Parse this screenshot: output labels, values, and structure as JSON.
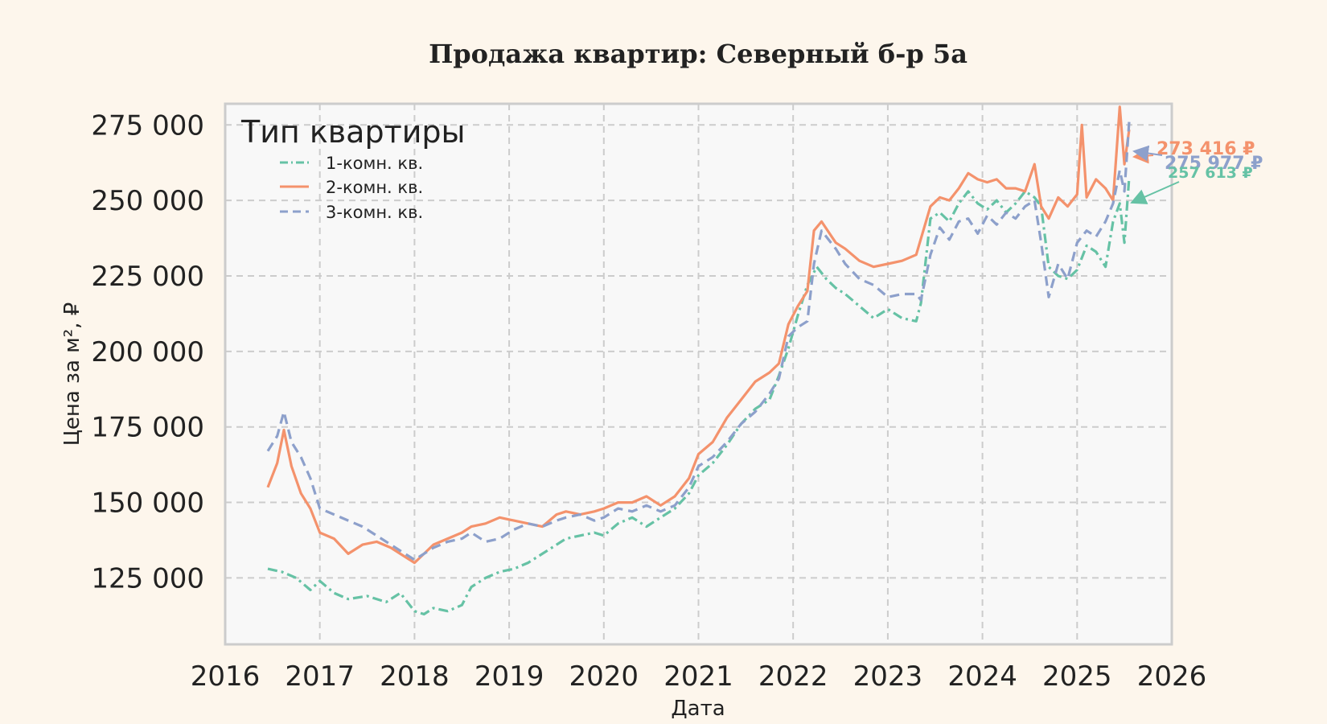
{
  "chart_data": {
    "type": "line",
    "title": "Продажа квартир: Северный б-р 5а",
    "xlabel": "Дата",
    "ylabel": "Цена за м², ₽",
    "xlim": [
      2016,
      2026
    ],
    "ylim": [
      103000,
      282000
    ],
    "x_ticks": [
      "2016",
      "2017",
      "2018",
      "2019",
      "2020",
      "2021",
      "2022",
      "2023",
      "2024",
      "2025",
      "2026"
    ],
    "y_ticks": [
      "125 000",
      "150 000",
      "175 000",
      "200 000",
      "225 000",
      "250 000",
      "275 000"
    ],
    "y_tick_values": [
      125000,
      150000,
      175000,
      200000,
      225000,
      250000,
      275000
    ],
    "grid": true,
    "legend": {
      "title": "Тип квартиры",
      "position": "top-left"
    },
    "series": [
      {
        "name": "1-комн. кв.",
        "color": "#66c2a5",
        "dash": "dashdot",
        "x": [
          2016.45,
          2016.6,
          2016.75,
          2016.9,
          2017.0,
          2017.15,
          2017.3,
          2017.5,
          2017.7,
          2017.85,
          2018.0,
          2018.1,
          2018.2,
          2018.35,
          2018.5,
          2018.6,
          2018.75,
          2018.9,
          2019.05,
          2019.2,
          2019.35,
          2019.5,
          2019.6,
          2019.75,
          2019.9,
          2020.0,
          2020.15,
          2020.3,
          2020.45,
          2020.6,
          2020.75,
          2020.9,
          2021.0,
          2021.15,
          2021.3,
          2021.45,
          2021.6,
          2021.75,
          2021.85,
          2021.95,
          2022.05,
          2022.15,
          2022.25,
          2022.35,
          2022.45,
          2022.55,
          2022.7,
          2022.85,
          2023.0,
          2023.15,
          2023.3,
          2023.35,
          2023.45,
          2023.55,
          2023.65,
          2023.75,
          2023.85,
          2023.95,
          2024.05,
          2024.15,
          2024.25,
          2024.35,
          2024.45,
          2024.55,
          2024.62,
          2024.7,
          2024.8,
          2024.9,
          2025.0,
          2025.1,
          2025.2,
          2025.3,
          2025.38,
          2025.45,
          2025.5,
          2025.55
        ],
        "y": [
          128000,
          127000,
          125000,
          121000,
          124000,
          120000,
          118000,
          119000,
          117000,
          120000,
          114000,
          113000,
          115000,
          114000,
          116000,
          122000,
          125000,
          127000,
          128000,
          130000,
          133000,
          136000,
          138000,
          139000,
          140000,
          139000,
          143000,
          145000,
          142000,
          145000,
          148000,
          153000,
          159000,
          163000,
          169000,
          176000,
          181000,
          184000,
          192000,
          201000,
          212000,
          222000,
          228000,
          224000,
          221000,
          219000,
          215000,
          211000,
          214000,
          211000,
          210000,
          216000,
          244000,
          246000,
          243000,
          249000,
          253000,
          249000,
          247000,
          250000,
          246000,
          249000,
          253000,
          251000,
          248000,
          228000,
          225000,
          224000,
          227000,
          235000,
          233000,
          228000,
          243000,
          249000,
          236000,
          257613
        ]
      },
      {
        "name": "2-комн. кв.",
        "color": "#f4926c",
        "dash": "solid",
        "x": [
          2016.45,
          2016.55,
          2016.62,
          2016.7,
          2016.8,
          2016.9,
          2017.0,
          2017.15,
          2017.3,
          2017.45,
          2017.6,
          2017.75,
          2017.85,
          2018.0,
          2018.1,
          2018.2,
          2018.35,
          2018.5,
          2018.6,
          2018.75,
          2018.9,
          2019.05,
          2019.2,
          2019.35,
          2019.5,
          2019.6,
          2019.75,
          2019.9,
          2020.0,
          2020.15,
          2020.3,
          2020.45,
          2020.6,
          2020.75,
          2020.9,
          2021.0,
          2021.15,
          2021.3,
          2021.45,
          2021.6,
          2021.75,
          2021.85,
          2021.95,
          2022.05,
          2022.15,
          2022.22,
          2022.3,
          2022.45,
          2022.55,
          2022.7,
          2022.85,
          2023.0,
          2023.15,
          2023.3,
          2023.45,
          2023.55,
          2023.65,
          2023.75,
          2023.85,
          2023.95,
          2024.05,
          2024.15,
          2024.25,
          2024.35,
          2024.45,
          2024.55,
          2024.62,
          2024.7,
          2024.8,
          2024.9,
          2025.0,
          2025.05,
          2025.1,
          2025.2,
          2025.3,
          2025.38,
          2025.45,
          2025.5,
          2025.55
        ],
        "y": [
          155000,
          163000,
          174000,
          162000,
          153000,
          148000,
          140000,
          138000,
          133000,
          136000,
          137000,
          135000,
          133000,
          130000,
          133000,
          136000,
          138000,
          140000,
          142000,
          143000,
          145000,
          144000,
          143000,
          142000,
          146000,
          147000,
          146000,
          147000,
          148000,
          150000,
          150000,
          152000,
          149000,
          152000,
          158000,
          166000,
          170000,
          178000,
          184000,
          190000,
          193000,
          196000,
          209000,
          215000,
          220000,
          240000,
          243000,
          236000,
          234000,
          230000,
          228000,
          229000,
          230000,
          232000,
          248000,
          251000,
          250000,
          254000,
          259000,
          257000,
          256000,
          257000,
          254000,
          254000,
          253000,
          262000,
          248000,
          244000,
          251000,
          248000,
          252000,
          275000,
          251000,
          257000,
          254000,
          250000,
          281000,
          262000,
          273416
        ]
      },
      {
        "name": "3-комн. кв.",
        "color": "#8da0cb",
        "dash": "dashed",
        "x": [
          2016.45,
          2016.55,
          2016.62,
          2016.7,
          2016.8,
          2016.9,
          2017.0,
          2017.15,
          2017.3,
          2017.45,
          2017.6,
          2017.75,
          2017.85,
          2018.0,
          2018.1,
          2018.2,
          2018.35,
          2018.5,
          2018.6,
          2018.75,
          2018.9,
          2019.05,
          2019.2,
          2019.35,
          2019.5,
          2019.6,
          2019.75,
          2019.9,
          2020.0,
          2020.15,
          2020.3,
          2020.45,
          2020.6,
          2020.75,
          2020.9,
          2021.0,
          2021.15,
          2021.3,
          2021.45,
          2021.6,
          2021.75,
          2021.85,
          2021.95,
          2022.05,
          2022.15,
          2022.22,
          2022.3,
          2022.45,
          2022.55,
          2022.7,
          2022.85,
          2023.0,
          2023.15,
          2023.3,
          2023.35,
          2023.45,
          2023.55,
          2023.65,
          2023.75,
          2023.85,
          2023.95,
          2024.05,
          2024.15,
          2024.25,
          2024.35,
          2024.45,
          2024.55,
          2024.62,
          2024.7,
          2024.8,
          2024.9,
          2025.0,
          2025.1,
          2025.2,
          2025.3,
          2025.38,
          2025.45,
          2025.5,
          2025.55
        ],
        "y": [
          167000,
          172000,
          180000,
          170000,
          165000,
          158000,
          148000,
          146000,
          144000,
          142000,
          139000,
          136000,
          134000,
          131000,
          133000,
          135000,
          137000,
          138000,
          140000,
          137000,
          138000,
          141000,
          143000,
          142000,
          144000,
          145000,
          146000,
          144000,
          145000,
          148000,
          147000,
          149000,
          147000,
          149000,
          155000,
          162000,
          165000,
          170000,
          176000,
          180000,
          186000,
          191000,
          205000,
          208000,
          210000,
          229000,
          240000,
          234000,
          229000,
          224000,
          222000,
          218000,
          219000,
          219000,
          217000,
          232000,
          241000,
          237000,
          243000,
          244000,
          239000,
          245000,
          242000,
          246000,
          244000,
          248000,
          250000,
          236000,
          218000,
          229000,
          224000,
          236000,
          240000,
          238000,
          243000,
          249000,
          260000,
          253000,
          275977
        ]
      }
    ],
    "annotations": [
      {
        "text": "273 416 ₽",
        "color": "#f4926c",
        "x": 2025.55,
        "y": 273416
      },
      {
        "text": "275 977 ₽",
        "color": "#8da0cb",
        "x": 2025.55,
        "y": 275977
      },
      {
        "text": "257 613 ₽",
        "color": "#66c2a5",
        "x": 2025.55,
        "y": 257613
      }
    ]
  }
}
